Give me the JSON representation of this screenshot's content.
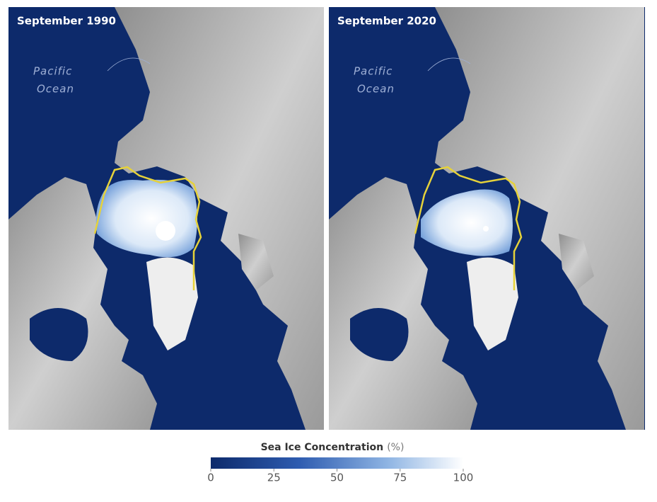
{
  "panels": [
    {
      "title": "September 1990",
      "ocean_label": [
        "Pacific",
        "Ocean"
      ]
    },
    {
      "title": "September 2020",
      "ocean_label": [
        "Pacific",
        "Ocean"
      ]
    }
  ],
  "colorbar": {
    "title": "Sea Ice Concentration",
    "unit": "(%)",
    "range": [
      0,
      100
    ],
    "ticks": [
      0,
      25,
      50,
      75,
      100
    ]
  }
}
